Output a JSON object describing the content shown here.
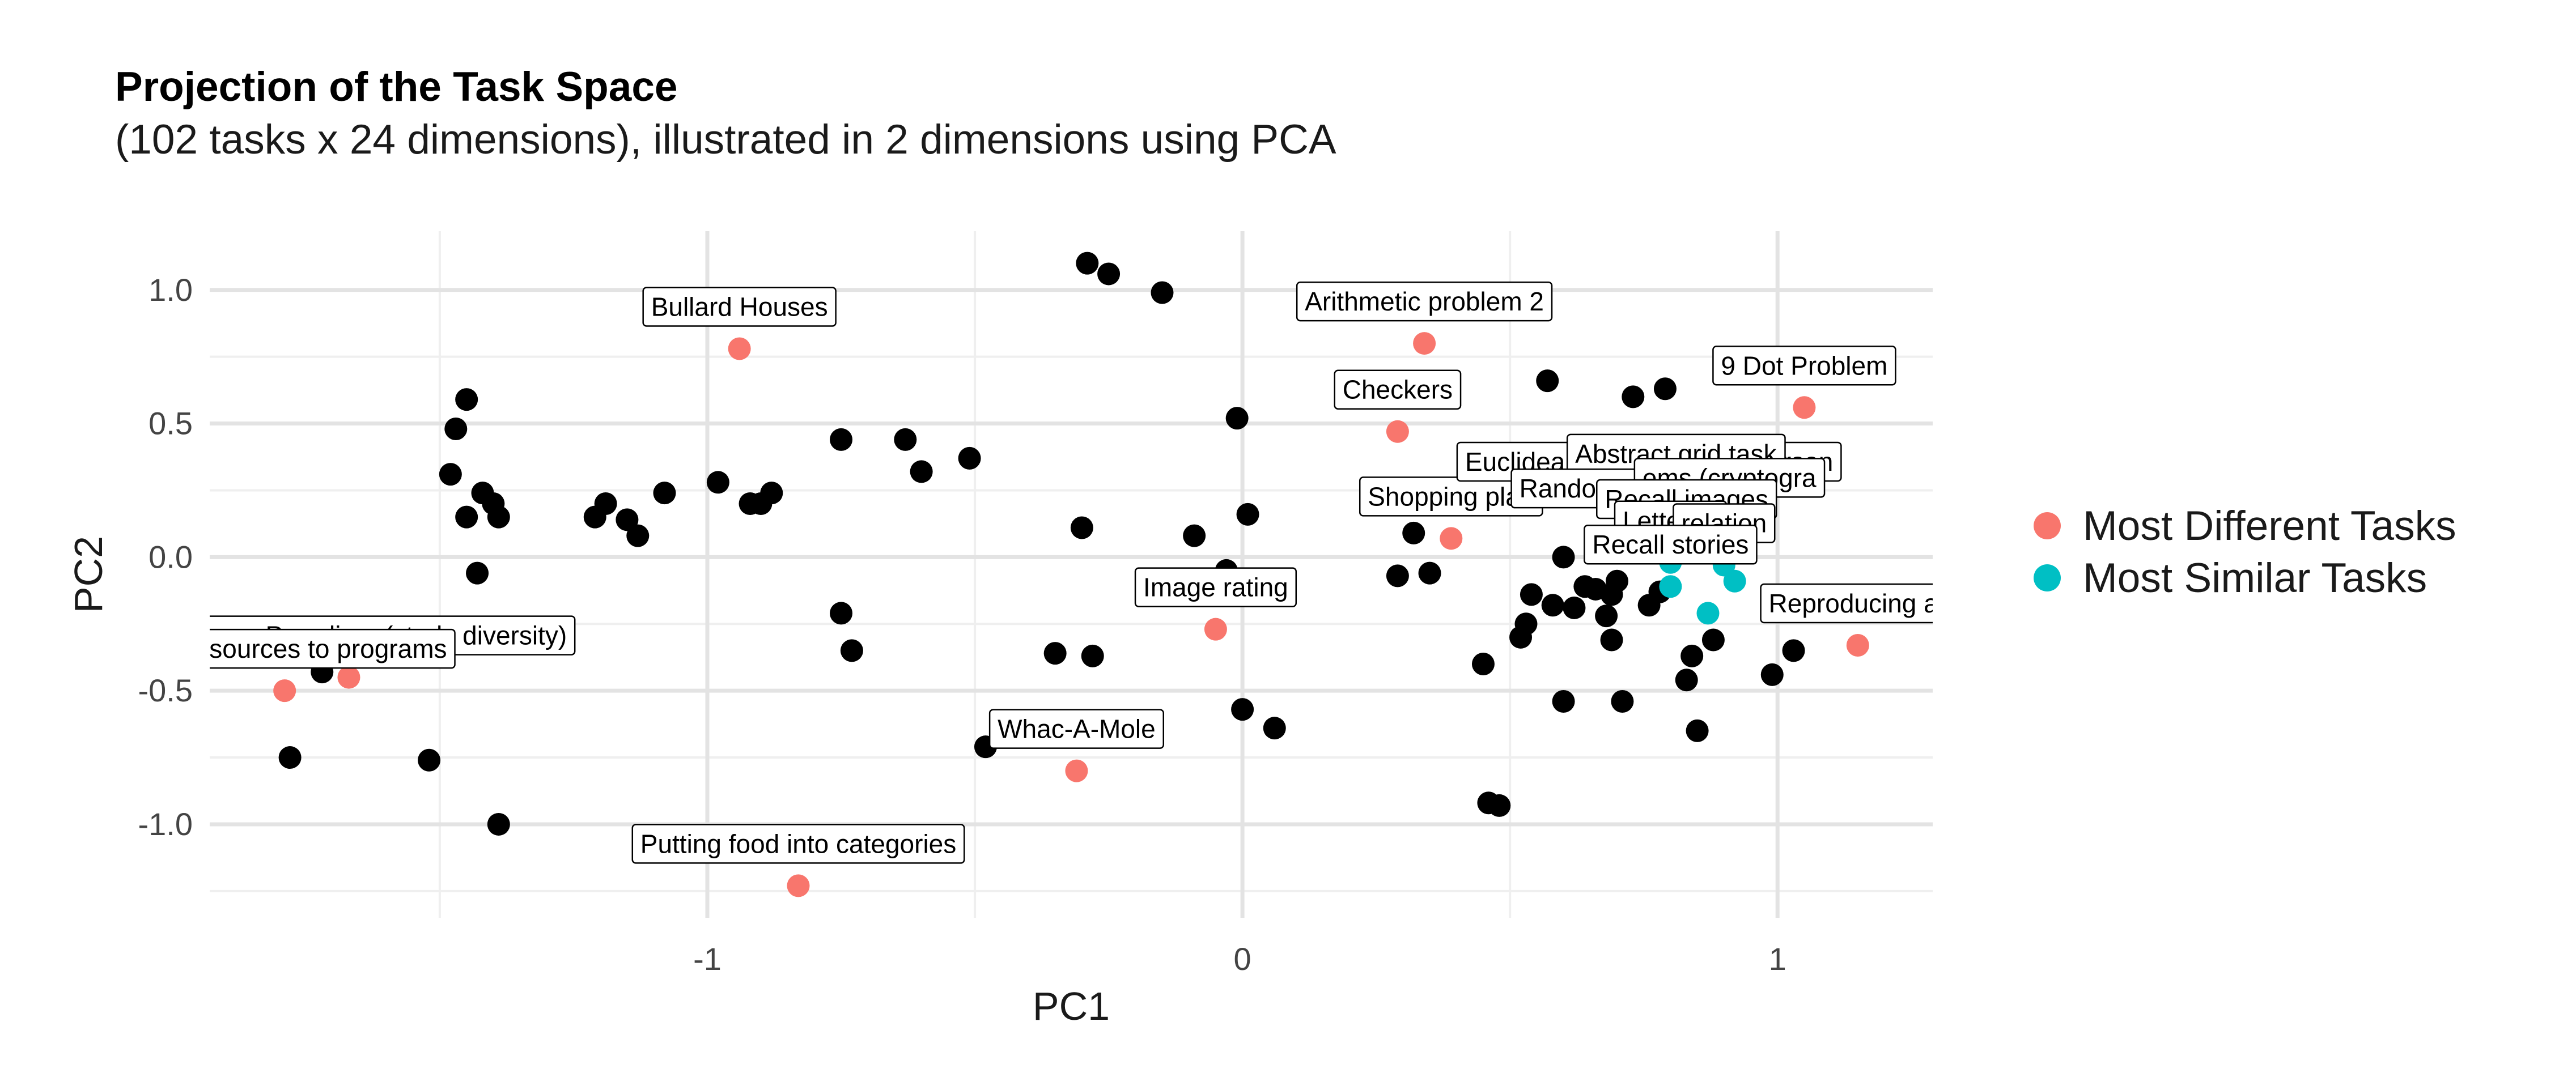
{
  "chart_data": {
    "type": "scatter",
    "title": "Projection of the Task Space",
    "subtitle": "(102 tasks x 24 dimensions), illustrated in 2 dimensions using PCA",
    "xlabel": "PC1",
    "ylabel": "PC2",
    "xlim": [
      -1.93,
      1.29
    ],
    "ylim": [
      -1.35,
      1.22
    ],
    "x_ticks": [
      -1,
      0,
      1
    ],
    "x_tick_labels": [
      "-1",
      "0",
      "1"
    ],
    "y_ticks": [
      -1.0,
      -0.5,
      0.0,
      0.5,
      1.0
    ],
    "y_tick_labels": [
      "-1.0",
      "-0.5",
      "0.0",
      "0.5",
      "1.0"
    ],
    "grid": true,
    "legend_position": "right",
    "legend": [
      {
        "name": "Most Different Tasks",
        "color": "#F8766D"
      },
      {
        "name": "Most Similar Tasks",
        "color": "#00BFC4"
      }
    ],
    "series": [
      {
        "name": "",
        "color": "#000000",
        "points": [
          [
            -0.29,
            1.1
          ],
          [
            -0.25,
            1.06
          ],
          [
            -0.15,
            0.99
          ],
          [
            0.57,
            0.66
          ],
          [
            0.73,
            0.6
          ],
          [
            0.79,
            0.63
          ],
          [
            -1.45,
            0.59
          ],
          [
            -1.47,
            0.48
          ],
          [
            -1.48,
            0.31
          ],
          [
            -1.42,
            0.24
          ],
          [
            -1.4,
            0.2
          ],
          [
            -1.45,
            0.15
          ],
          [
            -1.39,
            0.15
          ],
          [
            -1.43,
            -0.06
          ],
          [
            -1.19,
            0.2
          ],
          [
            -1.21,
            0.15
          ],
          [
            -1.15,
            0.14
          ],
          [
            -1.13,
            0.08
          ],
          [
            -1.08,
            0.24
          ],
          [
            -0.98,
            0.28
          ],
          [
            -0.92,
            0.2
          ],
          [
            -0.9,
            0.2
          ],
          [
            -0.88,
            0.24
          ],
          [
            -0.75,
            0.44
          ],
          [
            -0.63,
            0.44
          ],
          [
            -0.6,
            0.32
          ],
          [
            -0.51,
            0.37
          ],
          [
            -0.3,
            0.11
          ],
          [
            -0.09,
            0.08
          ],
          [
            -0.01,
            0.52
          ],
          [
            0.01,
            0.16
          ],
          [
            -0.03,
            -0.05
          ],
          [
            -0.75,
            -0.21
          ],
          [
            -0.73,
            -0.35
          ],
          [
            -0.35,
            -0.36
          ],
          [
            -0.28,
            -0.37
          ],
          [
            0.0,
            -0.57
          ],
          [
            0.06,
            -0.64
          ],
          [
            -0.48,
            -0.71
          ],
          [
            -1.72,
            -0.43
          ],
          [
            -1.78,
            -0.75
          ],
          [
            -1.52,
            -0.76
          ],
          [
            -1.39,
            -1.0
          ],
          [
            0.29,
            -0.07
          ],
          [
            0.35,
            -0.06
          ],
          [
            0.32,
            0.09
          ],
          [
            0.45,
            -0.4
          ],
          [
            0.46,
            -0.92
          ],
          [
            0.48,
            -0.93
          ],
          [
            0.52,
            -0.3
          ],
          [
            0.53,
            -0.25
          ],
          [
            0.54,
            -0.14
          ],
          [
            0.58,
            -0.18
          ],
          [
            0.6,
            0.0
          ],
          [
            0.62,
            -0.19
          ],
          [
            0.64,
            -0.11
          ],
          [
            0.66,
            -0.12
          ],
          [
            0.68,
            -0.22
          ],
          [
            0.69,
            -0.31
          ],
          [
            0.69,
            -0.14
          ],
          [
            0.7,
            -0.09
          ],
          [
            0.71,
            -0.54
          ],
          [
            0.76,
            -0.18
          ],
          [
            0.78,
            -0.13
          ],
          [
            0.83,
            -0.46
          ],
          [
            0.85,
            -0.65
          ],
          [
            0.84,
            -0.37
          ],
          [
            0.88,
            -0.31
          ],
          [
            0.99,
            -0.44
          ],
          [
            1.03,
            -0.35
          ],
          [
            0.6,
            -0.54
          ]
        ]
      },
      {
        "name": "Most Different Tasks",
        "color": "#F8766D",
        "points": [
          {
            "x": -0.94,
            "y": 0.78,
            "label": "Bullard Houses"
          },
          {
            "x": 0.34,
            "y": 0.8,
            "label": "Arithmetic problem 2"
          },
          {
            "x": 0.29,
            "y": 0.47,
            "label": "Checkers"
          },
          {
            "x": 1.05,
            "y": 0.56,
            "label": "9 Dot Problem"
          },
          {
            "x": 0.39,
            "y": 0.07,
            "label": "Shopping plan"
          },
          {
            "x": -0.05,
            "y": -0.27,
            "label": "Image rating"
          },
          {
            "x": 1.15,
            "y": -0.33,
            "label": "Reproducing ar"
          },
          {
            "x": -0.31,
            "y": -0.8,
            "label": "Whac-A-Mole"
          },
          {
            "x": -0.83,
            "y": -1.23,
            "label": "Putting food into categories"
          },
          {
            "x": -1.67,
            "y": -0.45,
            "label": "imal Group Paradigm (study diversity)"
          },
          {
            "x": -1.79,
            "y": -0.5,
            "label": "ating resources to programs"
          }
        ]
      },
      {
        "name": "Most Similar Tasks",
        "color": "#00BFC4",
        "points": [
          {
            "x": 0.76,
            "y": 0.2,
            "label": "Euclidean traveling salesperson"
          },
          {
            "x": 0.81,
            "y": 0.23,
            "label": "Abstract grid task"
          },
          {
            "x": 0.73,
            "y": 0.1,
            "label": "Random dot motion"
          },
          {
            "x": 0.91,
            "y": 0.14,
            "label": "ems (cryptogra"
          },
          {
            "x": 0.83,
            "y": 0.06,
            "label": "Recall images"
          },
          {
            "x": 0.8,
            "y": -0.02,
            "label": "Letters-t"
          },
          {
            "x": 0.9,
            "y": -0.03,
            "label": "relation"
          },
          {
            "x": 0.8,
            "y": -0.11,
            "label": "Recall stories"
          },
          {
            "x": 0.92,
            "y": -0.09,
            "label": ""
          },
          {
            "x": 0.87,
            "y": -0.21,
            "label": ""
          }
        ]
      }
    ]
  }
}
